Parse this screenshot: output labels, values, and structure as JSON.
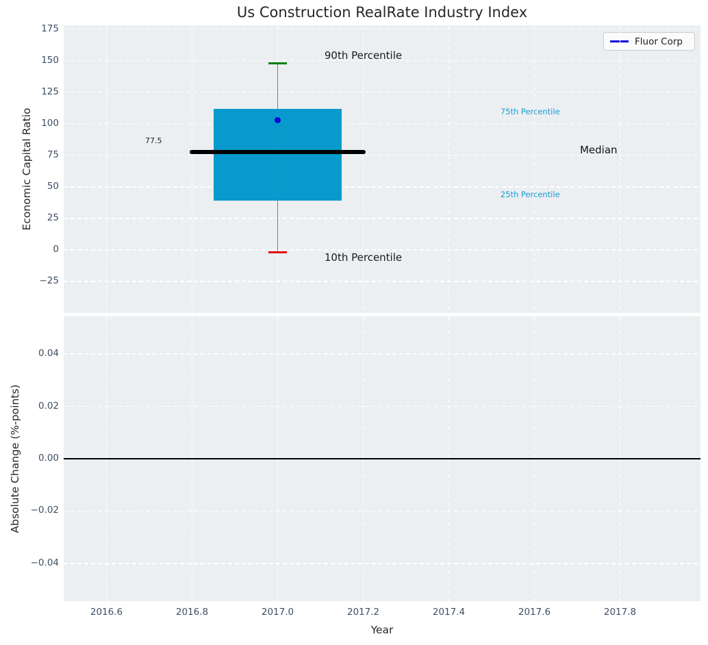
{
  "figure": {
    "title": "Us Construction RealRate Industry Index",
    "background": "#ffffff",
    "plot_background": "#eceff1",
    "grid_color": "#ffffff",
    "tick_color": "#3d4d63"
  },
  "legend": {
    "label": "Fluor Corp",
    "line_color": "#0101dd",
    "position": "upper right"
  },
  "x_axis": {
    "label": "Year",
    "xlim": [
      2016.5,
      2017.988
    ],
    "ticks": [
      2016.6,
      2016.8,
      2017.0,
      2017.2,
      2017.4,
      2017.6,
      2017.8
    ],
    "tick_labels": [
      "2016.6",
      "2016.8",
      "2017.0",
      "2017.2",
      "2017.4",
      "2017.6",
      "2017.8"
    ]
  },
  "top_axes": {
    "ylabel": "Economic Capital Ratio",
    "ylim": [
      -50,
      178
    ],
    "yticks": [
      175,
      150,
      125,
      100,
      75,
      50,
      25,
      0,
      -25
    ],
    "ytick_labels": [
      "175",
      "150",
      "125",
      "100",
      "75",
      "50",
      "25",
      "0",
      "−25"
    ]
  },
  "bottom_axes": {
    "ylabel": "Absolute Change (%-points)",
    "ylim": [
      -0.0544,
      0.0544
    ],
    "yticks": [
      0.04,
      0.02,
      0.0,
      -0.02,
      -0.04
    ],
    "ytick_labels": [
      "0.04",
      "0.02",
      "0.00",
      "−0.02",
      "−0.04"
    ],
    "zero_line": 0.0
  },
  "chart_data": [
    {
      "type": "boxplot",
      "title": "Us Construction RealRate Industry Index",
      "xlabel": "Year",
      "ylabel": "Economic Capital Ratio",
      "xlim": [
        2016.5,
        2017.988
      ],
      "ylim": [
        -50,
        178
      ],
      "grid": true,
      "legend_entries": [
        "Fluor Corp"
      ],
      "box": {
        "x": 2017.0,
        "p10": -2,
        "p25": 39,
        "median": 77.5,
        "p75": 112,
        "p90": 148,
        "box_halfwidth": 0.15,
        "median_halfwidth": 0.205,
        "cap_halfwidth": 0.021,
        "box_color": "#089acd",
        "median_color": "#000000",
        "whisker_color": "#7a7a7a",
        "cap_top_color": "#008000",
        "cap_bottom_color": "#e8000b"
      },
      "points": [
        {
          "name": "Fluor Corp",
          "x": 2017.0,
          "y": 103,
          "color": "#0b0bd6"
        }
      ],
      "annotations": [
        {
          "text": "90th Percentile",
          "x": 2017.2,
          "y": 153,
          "color": "#1a1a1a",
          "size": 15
        },
        {
          "text": "10th Percentile",
          "x": 2017.2,
          "y": -7,
          "color": "#1a1a1a",
          "size": 15
        },
        {
          "text": "Median",
          "x": 2017.75,
          "y": 78,
          "color": "#111111",
          "size": 15
        },
        {
          "text": "75th Percentile",
          "x": 2017.59,
          "y": 109,
          "color": "#1a9ad2",
          "size": 11.5
        },
        {
          "text": "25th Percentile",
          "x": 2017.59,
          "y": 43,
          "color": "#1a9ad2",
          "size": 11.5
        },
        {
          "text": "77.5",
          "x": 2016.71,
          "y": 86,
          "color": "#222222",
          "size": 11
        }
      ]
    },
    {
      "type": "line",
      "xlabel": "Year",
      "ylabel": "Absolute Change (%-points)",
      "xlim": [
        2016.5,
        2017.988
      ],
      "ylim": [
        -0.0544,
        0.0544
      ],
      "grid": true,
      "zero_line_y": 0.0,
      "series": []
    }
  ]
}
